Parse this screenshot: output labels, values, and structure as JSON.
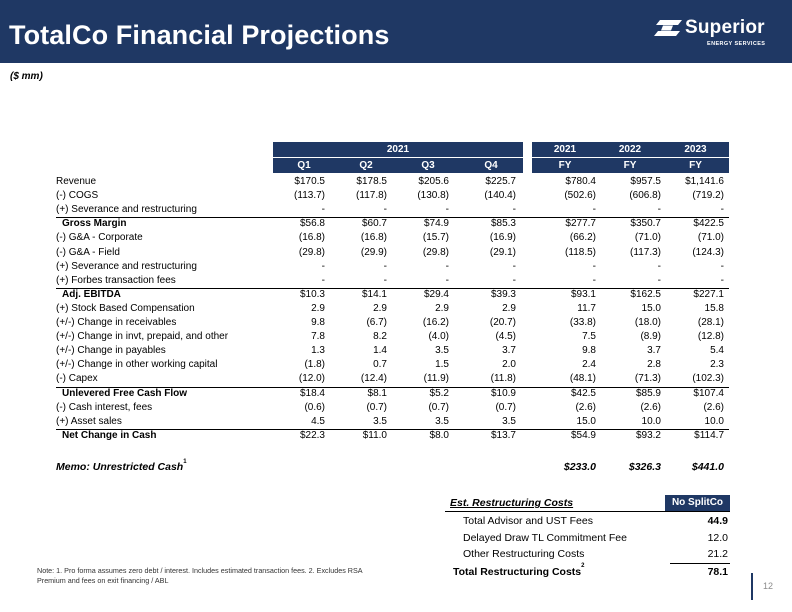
{
  "title": "TotalCo Financial Projections",
  "units": "($ mm)",
  "logo": {
    "name": "Superior",
    "sub": "ENERGY SERVICES"
  },
  "columns": {
    "group_2021": "2021",
    "quarters": [
      "Q1",
      "Q2",
      "Q3",
      "Q4"
    ],
    "years": [
      "2021",
      "2022",
      "2023"
    ],
    "fy_label": "FY"
  },
  "rows": [
    {
      "label": "Revenue",
      "q": [
        "$170.5",
        "$178.5",
        "$205.6",
        "$225.7"
      ],
      "fy": [
        "$780.4",
        "$957.5",
        "$1,141.6"
      ]
    },
    {
      "label": "(-) COGS",
      "q": [
        "(113.7)",
        "(117.8)",
        "(130.8)",
        "(140.4)"
      ],
      "fy": [
        "(502.6)",
        "(606.8)",
        "(719.2)"
      ]
    },
    {
      "label": "(+) Severance and restructuring",
      "q": [
        "-",
        "-",
        "-",
        "-"
      ],
      "fy": [
        "-",
        "-",
        "-"
      ]
    },
    {
      "label": "Gross Margin",
      "bold": true,
      "q": [
        "$56.8",
        "$60.7",
        "$74.9",
        "$85.3"
      ],
      "fy": [
        "$277.7",
        "$350.7",
        "$422.5"
      ]
    },
    {
      "label": "(-) G&A - Corporate",
      "q": [
        "(16.8)",
        "(16.8)",
        "(15.7)",
        "(16.9)"
      ],
      "fy": [
        "(66.2)",
        "(71.0)",
        "(71.0)"
      ]
    },
    {
      "label": "(-) G&A - Field",
      "q": [
        "(29.8)",
        "(29.9)",
        "(29.8)",
        "(29.1)"
      ],
      "fy": [
        "(118.5)",
        "(117.3)",
        "(124.3)"
      ]
    },
    {
      "label": "(+) Severance and restructuring",
      "q": [
        "-",
        "-",
        "-",
        "-"
      ],
      "fy": [
        "-",
        "-",
        "-"
      ]
    },
    {
      "label": "(+) Forbes transaction fees",
      "q": [
        "-",
        "-",
        "-",
        "-"
      ],
      "fy": [
        "-",
        "-",
        "-"
      ]
    },
    {
      "label": "Adj. EBITDA",
      "bold": true,
      "q": [
        "$10.3",
        "$14.1",
        "$29.4",
        "$39.3"
      ],
      "fy": [
        "$93.1",
        "$162.5",
        "$227.1"
      ]
    },
    {
      "label": "(+) Stock Based Compensation",
      "q": [
        "2.9",
        "2.9",
        "2.9",
        "2.9"
      ],
      "fy": [
        "11.7",
        "15.0",
        "15.8"
      ]
    },
    {
      "label": "(+/-) Change in receivables",
      "q": [
        "9.8",
        "(6.7)",
        "(16.2)",
        "(20.7)"
      ],
      "fy": [
        "(33.8)",
        "(18.0)",
        "(28.1)"
      ]
    },
    {
      "label": "(+/-) Change in invt, prepaid, and other",
      "q": [
        "7.8",
        "8.2",
        "(4.0)",
        "(4.5)"
      ],
      "fy": [
        "7.5",
        "(8.9)",
        "(12.8)"
      ]
    },
    {
      "label": "(+/-) Change in payables",
      "q": [
        "1.3",
        "1.4",
        "3.5",
        "3.7"
      ],
      "fy": [
        "9.8",
        "3.7",
        "5.4"
      ]
    },
    {
      "label": "(+/-) Change in other working capital",
      "q": [
        "(1.8)",
        "0.7",
        "1.5",
        "2.0"
      ],
      "fy": [
        "2.4",
        "2.8",
        "2.3"
      ]
    },
    {
      "label": "(-) Capex",
      "q": [
        "(12.0)",
        "(12.4)",
        "(11.9)",
        "(11.8)"
      ],
      "fy": [
        "(48.1)",
        "(71.3)",
        "(102.3)"
      ]
    },
    {
      "label": "Unlevered Free Cash Flow",
      "bold": true,
      "q": [
        "$18.4",
        "$8.1",
        "$5.2",
        "$10.9"
      ],
      "fy": [
        "$42.5",
        "$85.9",
        "$107.4"
      ]
    },
    {
      "label": "(-) Cash interest, fees",
      "q": [
        "(0.6)",
        "(0.7)",
        "(0.7)",
        "(0.7)"
      ],
      "fy": [
        "(2.6)",
        "(2.6)",
        "(2.6)"
      ]
    },
    {
      "label": "(+) Asset sales",
      "q": [
        "4.5",
        "3.5",
        "3.5",
        "3.5"
      ],
      "fy": [
        "15.0",
        "10.0",
        "10.0"
      ]
    },
    {
      "label": "Net Change in Cash",
      "bold": true,
      "q": [
        "$22.3",
        "$11.0",
        "$8.0",
        "$13.7"
      ],
      "fy": [
        "$54.9",
        "$93.2",
        "$114.7"
      ]
    }
  ],
  "memo": {
    "label": "Memo: Unrestricted Cash",
    "sup": "1",
    "fy": [
      "$233.0",
      "$326.3",
      "$441.0"
    ]
  },
  "restructuring": {
    "title": "Est. Restructuring Costs",
    "header": "No SplitCo",
    "items": [
      {
        "label": "Total Advisor and UST Fees",
        "value": "44.9",
        "bold": true
      },
      {
        "label": "Delayed Draw  TL Commitment Fee",
        "value": "12.0"
      },
      {
        "label": "Other Restructuring Costs",
        "value": "21.2"
      }
    ],
    "total_label": "Total Restructuring Costs",
    "total_sup": "2",
    "total_value": "78.1"
  },
  "note": "Note: 1. Pro forma assumes zero debt / interest. Includes estimated transaction fees. 2. Excludes RSA Premium and fees on exit financing / ABL",
  "page_number": "12"
}
